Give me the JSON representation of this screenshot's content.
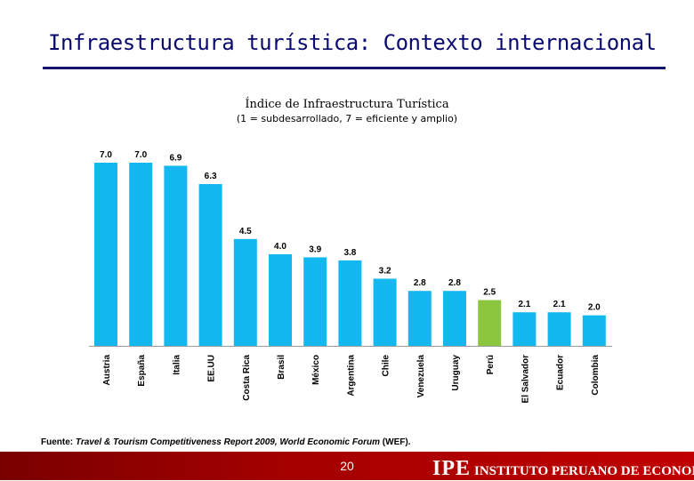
{
  "page": {
    "title": "Infraestructura turística: Contexto internacional",
    "page_number": "20",
    "source": {
      "prefix": "Fuente: ",
      "italic": "Travel & Tourism Competitiveness Report 2009, World Economic Forum",
      "suffix": " (WEF)."
    },
    "logo": {
      "abbr": "IPE",
      "name": "INSTITUTO PERUANO DE ECONOMÍA"
    }
  },
  "colors": {
    "bar": "#13b8f0",
    "highlight": "#8cc63f",
    "title": "#0a0a6e",
    "footer": "#c00000"
  },
  "chart_data": {
    "type": "bar",
    "title": "Índice de Infraestructura Turística",
    "subtitle": "(1 = subdesarrollado, 7 = eficiente y amplio)",
    "categories": [
      "Austria",
      "España",
      "Italia",
      "EE.UU",
      "Costa Rica",
      "Brasil",
      "México",
      "Argentina",
      "Chile",
      "Venezuela",
      "Uruguay",
      "Perú",
      "El Salvador",
      "Ecuador",
      "Colombia"
    ],
    "values": [
      7.0,
      7.0,
      6.9,
      6.3,
      4.5,
      4.0,
      3.9,
      3.8,
      3.2,
      2.8,
      2.8,
      2.5,
      2.1,
      2.1,
      2.0
    ],
    "labels": [
      "7.0",
      "7.0",
      "6.9",
      "6.3",
      "4.5",
      "4.0",
      "3.9",
      "3.8",
      "3.2",
      "2.8",
      "2.8",
      "2.5",
      "2.1",
      "2.1",
      "2.0"
    ],
    "highlight": "Perú",
    "ylim": [
      1,
      7
    ],
    "grid": false,
    "legend": "none"
  }
}
